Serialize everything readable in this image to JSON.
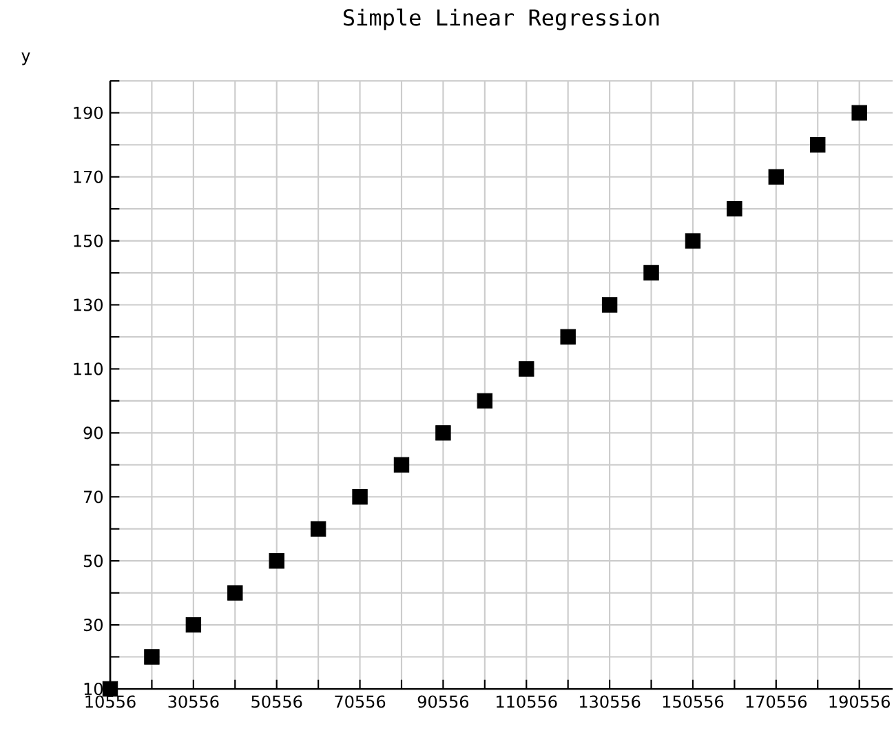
{
  "chart_data": {
    "type": "scatter",
    "title": "Simple Linear Regression",
    "ylabel": "y",
    "x": [
      10556,
      20556,
      30556,
      40556,
      50556,
      60556,
      70556,
      80556,
      90556,
      100556,
      110556,
      120556,
      130556,
      140556,
      150556,
      160556,
      170556,
      180556,
      190556
    ],
    "series": [
      {
        "color": "#000000",
        "values": [
          10,
          20,
          30,
          40,
          50,
          60,
          70,
          80,
          90,
          100,
          110,
          120,
          130,
          140,
          150,
          160,
          170,
          180,
          190
        ]
      }
    ],
    "xlim": [
      10556,
      198556
    ],
    "ylim": [
      10,
      200
    ],
    "xticks": [
      10556,
      {
        "value": 20556,
        "label": null
      },
      30556,
      {
        "value": 40556,
        "label": null
      },
      50556,
      {
        "value": 60556,
        "label": null
      },
      70556,
      {
        "value": 80556,
        "label": null
      },
      90556,
      {
        "value": 100556,
        "label": null
      },
      110556,
      {
        "value": 120556,
        "label": null
      },
      130556,
      {
        "value": 140556,
        "label": null
      },
      150556,
      {
        "value": 160556,
        "label": null
      },
      170556,
      {
        "value": 180556,
        "label": null
      },
      190556
    ],
    "yticks": [
      10,
      {
        "value": 20,
        "label": null
      },
      30,
      {
        "value": 40,
        "label": null
      },
      50,
      {
        "value": 60,
        "label": null
      },
      70,
      {
        "value": 80,
        "label": null
      },
      90,
      {
        "value": 100,
        "label": null
      },
      110,
      {
        "value": 120,
        "label": null
      },
      130,
      {
        "value": 140,
        "label": null
      },
      150,
      {
        "value": 160,
        "label": null
      },
      170,
      {
        "value": 180,
        "label": null
      },
      190,
      {
        "value": 200,
        "label": null
      }
    ],
    "grid": true,
    "marker": "square"
  }
}
